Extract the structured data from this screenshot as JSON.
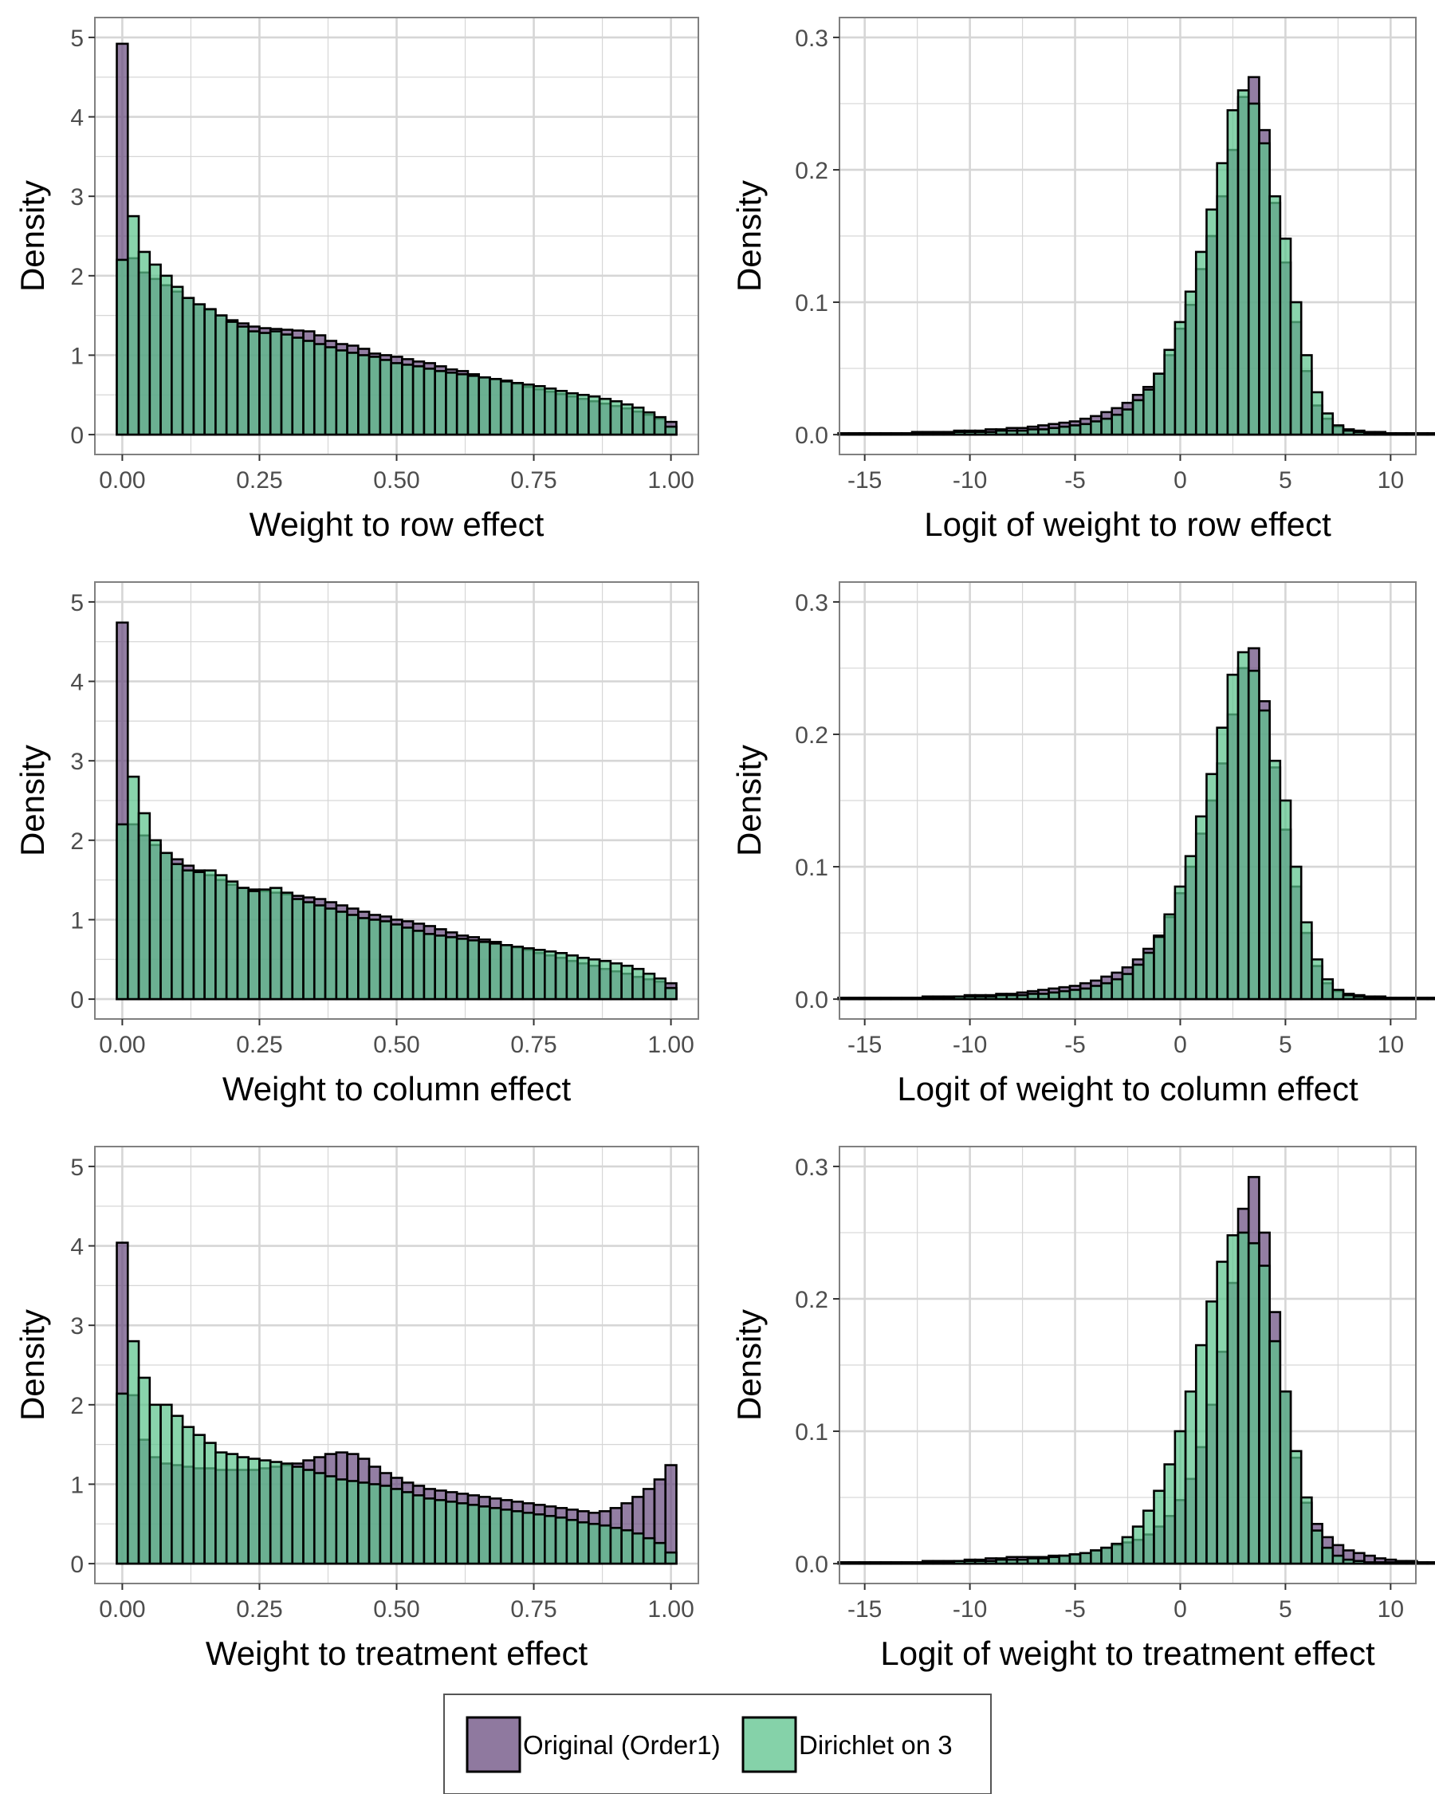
{
  "colors": {
    "original": "#6a4c7f",
    "dirichlet": "#5cc38c",
    "overlap": "#3f7d5e",
    "grid": "#d6d6d6",
    "outline": "#000000",
    "panel_border": "#808080"
  },
  "legend": {
    "entries": [
      {
        "key": "original",
        "label": "Original (Order1)"
      },
      {
        "key": "dirichlet",
        "label": "Dirichlet on 3"
      }
    ]
  },
  "chart_data": [
    {
      "type": "bar",
      "subtype": "overlaid-histogram",
      "xlabel": "Weight to row effect",
      "ylabel": "Density",
      "xlim": [
        -0.05,
        1.05
      ],
      "ylim": [
        -0.25,
        5.25
      ],
      "xticks": [
        0,
        0.25,
        0.5,
        0.75,
        1
      ],
      "xtick_labels": [
        "0.00",
        "0.25",
        "0.50",
        "0.75",
        "1.00"
      ],
      "yticks": [
        0,
        1,
        2,
        3,
        4,
        5
      ],
      "ytick_labels": [
        "0",
        "1",
        "2",
        "3",
        "4",
        "5"
      ],
      "bin_start": -0.01,
      "bin_width": 0.02,
      "series": [
        {
          "name": "Original (Order1)",
          "key": "original",
          "values": [
            4.92,
            2.22,
            2.04,
            1.96,
            1.88,
            1.8,
            1.72,
            1.64,
            1.57,
            1.5,
            1.44,
            1.4,
            1.36,
            1.34,
            1.33,
            1.32,
            1.31,
            1.3,
            1.25,
            1.18,
            1.14,
            1.12,
            1.08,
            1.02,
            1.0,
            0.98,
            0.95,
            0.92,
            0.9,
            0.86,
            0.82,
            0.8,
            0.76,
            0.72,
            0.7,
            0.68,
            0.64,
            0.6,
            0.57,
            0.54,
            0.51,
            0.48,
            0.45,
            0.42,
            0.39,
            0.36,
            0.33,
            0.29,
            0.25,
            0.2,
            0.16
          ]
        },
        {
          "name": "Dirichlet on 3",
          "key": "dirichlet",
          "values": [
            2.2,
            2.75,
            2.3,
            2.14,
            2.0,
            1.86,
            1.72,
            1.64,
            1.58,
            1.5,
            1.42,
            1.36,
            1.3,
            1.28,
            1.3,
            1.26,
            1.22,
            1.18,
            1.14,
            1.1,
            1.06,
            1.03,
            1.0,
            0.98,
            0.94,
            0.9,
            0.88,
            0.86,
            0.83,
            0.8,
            0.78,
            0.76,
            0.74,
            0.72,
            0.7,
            0.67,
            0.65,
            0.63,
            0.61,
            0.58,
            0.55,
            0.52,
            0.5,
            0.48,
            0.45,
            0.42,
            0.38,
            0.34,
            0.28,
            0.22,
            0.1
          ]
        }
      ]
    },
    {
      "type": "bar",
      "subtype": "overlaid-histogram",
      "xlabel": "Logit of weight to row effect",
      "ylabel": "Density",
      "xlim": [
        -16.2,
        11.2
      ],
      "ylim": [
        -0.015,
        0.315
      ],
      "xticks": [
        -15,
        -10,
        -5,
        0,
        5,
        10
      ],
      "xtick_labels": [
        "-15",
        "-10",
        "-5",
        "0",
        "5",
        "10"
      ],
      "yticks": [
        0,
        0.1,
        0.2,
        0.3
      ],
      "ytick_labels": [
        "0.0",
        "0.1",
        "0.2",
        "0.3"
      ],
      "bin_start": -16.25,
      "bin_width": 0.5,
      "series": [
        {
          "name": "Original (Order1)",
          "key": "original",
          "values": [
            0.001,
            0.001,
            0.001,
            0.001,
            0.001,
            0.001,
            0.001,
            0.002,
            0.002,
            0.002,
            0.002,
            0.003,
            0.003,
            0.003,
            0.004,
            0.004,
            0.005,
            0.005,
            0.006,
            0.007,
            0.008,
            0.009,
            0.01,
            0.012,
            0.014,
            0.017,
            0.02,
            0.024,
            0.03,
            0.036,
            0.046,
            0.06,
            0.08,
            0.098,
            0.125,
            0.15,
            0.18,
            0.215,
            0.255,
            0.27,
            0.23,
            0.175,
            0.13,
            0.085,
            0.048,
            0.022,
            0.012,
            0.006,
            0.004,
            0.003,
            0.002,
            0.002,
            0.001,
            0.001,
            0.001,
            0.001,
            0.001
          ]
        },
        {
          "name": "Dirichlet on 3",
          "key": "dirichlet",
          "values": [
            0.001,
            0.001,
            0.001,
            0.001,
            0.001,
            0.001,
            0.001,
            0.001,
            0.001,
            0.001,
            0.001,
            0.002,
            0.002,
            0.002,
            0.002,
            0.003,
            0.003,
            0.003,
            0.004,
            0.004,
            0.005,
            0.006,
            0.007,
            0.008,
            0.01,
            0.012,
            0.015,
            0.019,
            0.026,
            0.034,
            0.046,
            0.064,
            0.085,
            0.108,
            0.138,
            0.17,
            0.205,
            0.245,
            0.26,
            0.25,
            0.22,
            0.18,
            0.148,
            0.1,
            0.06,
            0.032,
            0.016,
            0.007,
            0.003,
            0.002,
            0.001,
            0.001,
            0.001,
            0.001,
            0.001,
            0.001,
            0.001
          ]
        }
      ]
    },
    {
      "type": "bar",
      "subtype": "overlaid-histogram",
      "xlabel": "Weight to column effect",
      "ylabel": "Density",
      "xlim": [
        -0.05,
        1.05
      ],
      "ylim": [
        -0.25,
        5.25
      ],
      "xticks": [
        0,
        0.25,
        0.5,
        0.75,
        1
      ],
      "xtick_labels": [
        "0.00",
        "0.25",
        "0.50",
        "0.75",
        "1.00"
      ],
      "yticks": [
        0,
        1,
        2,
        3,
        4,
        5
      ],
      "ytick_labels": [
        "0",
        "1",
        "2",
        "3",
        "4",
        "5"
      ],
      "bin_start": -0.01,
      "bin_width": 0.02,
      "series": [
        {
          "name": "Original (Order1)",
          "key": "original",
          "values": [
            4.74,
            2.2,
            2.06,
            1.94,
            1.84,
            1.76,
            1.68,
            1.62,
            1.56,
            1.5,
            1.44,
            1.4,
            1.38,
            1.36,
            1.34,
            1.32,
            1.3,
            1.28,
            1.26,
            1.22,
            1.18,
            1.14,
            1.1,
            1.06,
            1.04,
            1.0,
            0.98,
            0.95,
            0.92,
            0.88,
            0.84,
            0.8,
            0.78,
            0.75,
            0.72,
            0.68,
            0.65,
            0.62,
            0.58,
            0.55,
            0.52,
            0.48,
            0.45,
            0.42,
            0.38,
            0.35,
            0.32,
            0.28,
            0.25,
            0.22,
            0.2
          ]
        },
        {
          "name": "Dirichlet on 3",
          "key": "dirichlet",
          "values": [
            2.2,
            2.8,
            2.34,
            2.0,
            1.84,
            1.7,
            1.62,
            1.6,
            1.62,
            1.56,
            1.48,
            1.4,
            1.36,
            1.38,
            1.4,
            1.34,
            1.26,
            1.22,
            1.18,
            1.14,
            1.1,
            1.06,
            1.02,
            1.0,
            0.98,
            0.94,
            0.9,
            0.86,
            0.82,
            0.8,
            0.78,
            0.76,
            0.74,
            0.72,
            0.7,
            0.68,
            0.66,
            0.64,
            0.62,
            0.6,
            0.58,
            0.55,
            0.52,
            0.5,
            0.48,
            0.45,
            0.42,
            0.38,
            0.32,
            0.26,
            0.14
          ]
        }
      ]
    },
    {
      "type": "bar",
      "subtype": "overlaid-histogram",
      "xlabel": "Logit of weight to column effect",
      "ylabel": "Density",
      "xlim": [
        -16.2,
        11.2
      ],
      "ylim": [
        -0.015,
        0.315
      ],
      "xticks": [
        -15,
        -10,
        -5,
        0,
        5,
        10
      ],
      "xtick_labels": [
        "-15",
        "-10",
        "-5",
        "0",
        "5",
        "10"
      ],
      "yticks": [
        0,
        0.1,
        0.2,
        0.3
      ],
      "ytick_labels": [
        "0.0",
        "0.1",
        "0.2",
        "0.3"
      ],
      "bin_start": -16.25,
      "bin_width": 0.5,
      "series": [
        {
          "name": "Original (Order1)",
          "key": "original",
          "values": [
            0.001,
            0.001,
            0.001,
            0.001,
            0.001,
            0.001,
            0.001,
            0.001,
            0.002,
            0.002,
            0.002,
            0.002,
            0.003,
            0.003,
            0.003,
            0.004,
            0.004,
            0.005,
            0.006,
            0.007,
            0.008,
            0.009,
            0.01,
            0.012,
            0.014,
            0.017,
            0.02,
            0.024,
            0.03,
            0.038,
            0.048,
            0.062,
            0.08,
            0.1,
            0.125,
            0.15,
            0.178,
            0.215,
            0.25,
            0.265,
            0.225,
            0.175,
            0.128,
            0.085,
            0.05,
            0.025,
            0.012,
            0.006,
            0.004,
            0.003,
            0.002,
            0.002,
            0.001,
            0.001,
            0.001,
            0.001,
            0.001
          ]
        },
        {
          "name": "Dirichlet on 3",
          "key": "dirichlet",
          "values": [
            0.001,
            0.001,
            0.001,
            0.001,
            0.001,
            0.001,
            0.001,
            0.001,
            0.001,
            0.001,
            0.001,
            0.002,
            0.002,
            0.002,
            0.002,
            0.003,
            0.003,
            0.003,
            0.004,
            0.004,
            0.005,
            0.006,
            0.007,
            0.008,
            0.01,
            0.012,
            0.015,
            0.019,
            0.026,
            0.035,
            0.047,
            0.064,
            0.085,
            0.108,
            0.138,
            0.17,
            0.205,
            0.245,
            0.262,
            0.248,
            0.218,
            0.18,
            0.15,
            0.1,
            0.058,
            0.03,
            0.015,
            0.007,
            0.003,
            0.002,
            0.001,
            0.001,
            0.001,
            0.001,
            0.001,
            0.001,
            0.001
          ]
        }
      ]
    },
    {
      "type": "bar",
      "subtype": "overlaid-histogram",
      "xlabel": "Weight to treatment effect",
      "ylabel": "Density",
      "xlim": [
        -0.05,
        1.05
      ],
      "ylim": [
        -0.25,
        5.25
      ],
      "xticks": [
        0,
        0.25,
        0.5,
        0.75,
        1
      ],
      "xtick_labels": [
        "0.00",
        "0.25",
        "0.50",
        "0.75",
        "1.00"
      ],
      "yticks": [
        0,
        1,
        2,
        3,
        4,
        5
      ],
      "ytick_labels": [
        "0",
        "1",
        "2",
        "3",
        "4",
        "5"
      ],
      "bin_start": -0.01,
      "bin_width": 0.02,
      "series": [
        {
          "name": "Original (Order1)",
          "key": "original",
          "values": [
            4.04,
            2.12,
            1.56,
            1.34,
            1.26,
            1.24,
            1.22,
            1.2,
            1.2,
            1.18,
            1.18,
            1.18,
            1.18,
            1.2,
            1.22,
            1.24,
            1.26,
            1.3,
            1.34,
            1.38,
            1.4,
            1.38,
            1.32,
            1.22,
            1.14,
            1.08,
            1.02,
            0.98,
            0.94,
            0.92,
            0.9,
            0.88,
            0.86,
            0.84,
            0.82,
            0.8,
            0.78,
            0.76,
            0.74,
            0.72,
            0.7,
            0.68,
            0.66,
            0.64,
            0.66,
            0.7,
            0.76,
            0.84,
            0.94,
            1.06,
            1.24
          ]
        },
        {
          "name": "Dirichlet on 3",
          "key": "dirichlet",
          "values": [
            2.14,
            2.8,
            2.34,
            2.0,
            2.0,
            1.86,
            1.72,
            1.62,
            1.52,
            1.4,
            1.38,
            1.34,
            1.32,
            1.3,
            1.28,
            1.26,
            1.22,
            1.18,
            1.14,
            1.1,
            1.06,
            1.04,
            1.02,
            1.0,
            0.98,
            0.94,
            0.9,
            0.86,
            0.82,
            0.8,
            0.78,
            0.76,
            0.74,
            0.72,
            0.7,
            0.68,
            0.66,
            0.64,
            0.62,
            0.6,
            0.58,
            0.55,
            0.52,
            0.5,
            0.48,
            0.45,
            0.42,
            0.38,
            0.32,
            0.26,
            0.14
          ]
        }
      ]
    },
    {
      "type": "bar",
      "subtype": "overlaid-histogram",
      "xlabel": "Logit of weight to treatment effect",
      "ylabel": "Density",
      "xlim": [
        -16.2,
        11.2
      ],
      "ylim": [
        -0.015,
        0.315
      ],
      "xticks": [
        -15,
        -10,
        -5,
        0,
        5,
        10
      ],
      "xtick_labels": [
        "-15",
        "-10",
        "-5",
        "0",
        "5",
        "10"
      ],
      "yticks": [
        0,
        0.1,
        0.2,
        0.3
      ],
      "ytick_labels": [
        "0.0",
        "0.1",
        "0.2",
        "0.3"
      ],
      "bin_start": -16.25,
      "bin_width": 0.5,
      "series": [
        {
          "name": "Original (Order1)",
          "key": "original",
          "values": [
            0.001,
            0.001,
            0.001,
            0.001,
            0.001,
            0.001,
            0.001,
            0.001,
            0.002,
            0.002,
            0.002,
            0.002,
            0.003,
            0.003,
            0.004,
            0.004,
            0.005,
            0.005,
            0.005,
            0.005,
            0.006,
            0.006,
            0.007,
            0.008,
            0.01,
            0.012,
            0.014,
            0.016,
            0.018,
            0.022,
            0.028,
            0.036,
            0.048,
            0.064,
            0.088,
            0.12,
            0.16,
            0.212,
            0.268,
            0.292,
            0.25,
            0.19,
            0.13,
            0.08,
            0.046,
            0.03,
            0.02,
            0.014,
            0.01,
            0.008,
            0.006,
            0.004,
            0.003,
            0.002,
            0.002,
            0.001,
            0.001
          ]
        },
        {
          "name": "Dirichlet on 3",
          "key": "dirichlet",
          "values": [
            0.001,
            0.001,
            0.001,
            0.001,
            0.001,
            0.001,
            0.001,
            0.001,
            0.001,
            0.001,
            0.001,
            0.002,
            0.002,
            0.002,
            0.002,
            0.003,
            0.003,
            0.003,
            0.004,
            0.004,
            0.005,
            0.006,
            0.007,
            0.008,
            0.01,
            0.012,
            0.015,
            0.02,
            0.028,
            0.04,
            0.055,
            0.075,
            0.1,
            0.13,
            0.165,
            0.198,
            0.228,
            0.248,
            0.25,
            0.242,
            0.225,
            0.168,
            0.13,
            0.085,
            0.05,
            0.025,
            0.012,
            0.006,
            0.003,
            0.002,
            0.001,
            0.001,
            0.001,
            0.001,
            0.001,
            0.001,
            0.001
          ]
        }
      ]
    }
  ]
}
